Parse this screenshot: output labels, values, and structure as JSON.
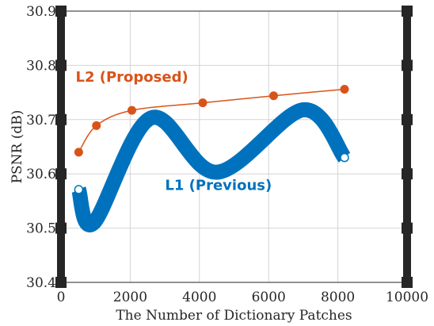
{
  "chart_data": {
    "type": "line",
    "title": "",
    "xlabel": "The Number of Dictionary Patches",
    "ylabel": "PSNR (dB)",
    "xlim": [
      0,
      10000
    ],
    "ylim": [
      30.4,
      30.9
    ],
    "xticks": [
      0,
      2000,
      4000,
      6000,
      8000,
      10000
    ],
    "xtick_labels": [
      "0",
      "2000",
      "4000",
      "6000",
      "8000",
      "10000"
    ],
    "yticks": [
      30.4,
      30.5,
      30.6,
      30.7,
      30.8,
      30.9
    ],
    "ytick_labels": [
      "30.4",
      "30.5",
      "30.6",
      "30.7",
      "30.8",
      "30.9"
    ],
    "grid": true,
    "series": [
      {
        "name": "L2 (Proposed)",
        "color": "#D95319",
        "style": "thin line with filled circle markers",
        "x": [
          512,
          1024,
          2048,
          4096,
          6144,
          8192
        ],
        "y": [
          30.64,
          30.689,
          30.717,
          30.731,
          30.744,
          30.756
        ]
      },
      {
        "name": "L1 (Previous)",
        "color": "#0072BD",
        "style": "thick oscillating curve with open circle end markers",
        "x": [
          512,
          950,
          2600,
          4500,
          7000,
          8192
        ],
        "y": [
          30.571,
          30.51,
          30.703,
          30.603,
          30.718,
          30.63
        ]
      }
    ],
    "annotations": [
      {
        "text": "L2 (Proposed)",
        "color": "#D95319",
        "x": 2050,
        "y": 30.77
      },
      {
        "text": "L1 (Previous)",
        "color": "#0072BD",
        "x": 4550,
        "y": 30.57
      }
    ]
  }
}
